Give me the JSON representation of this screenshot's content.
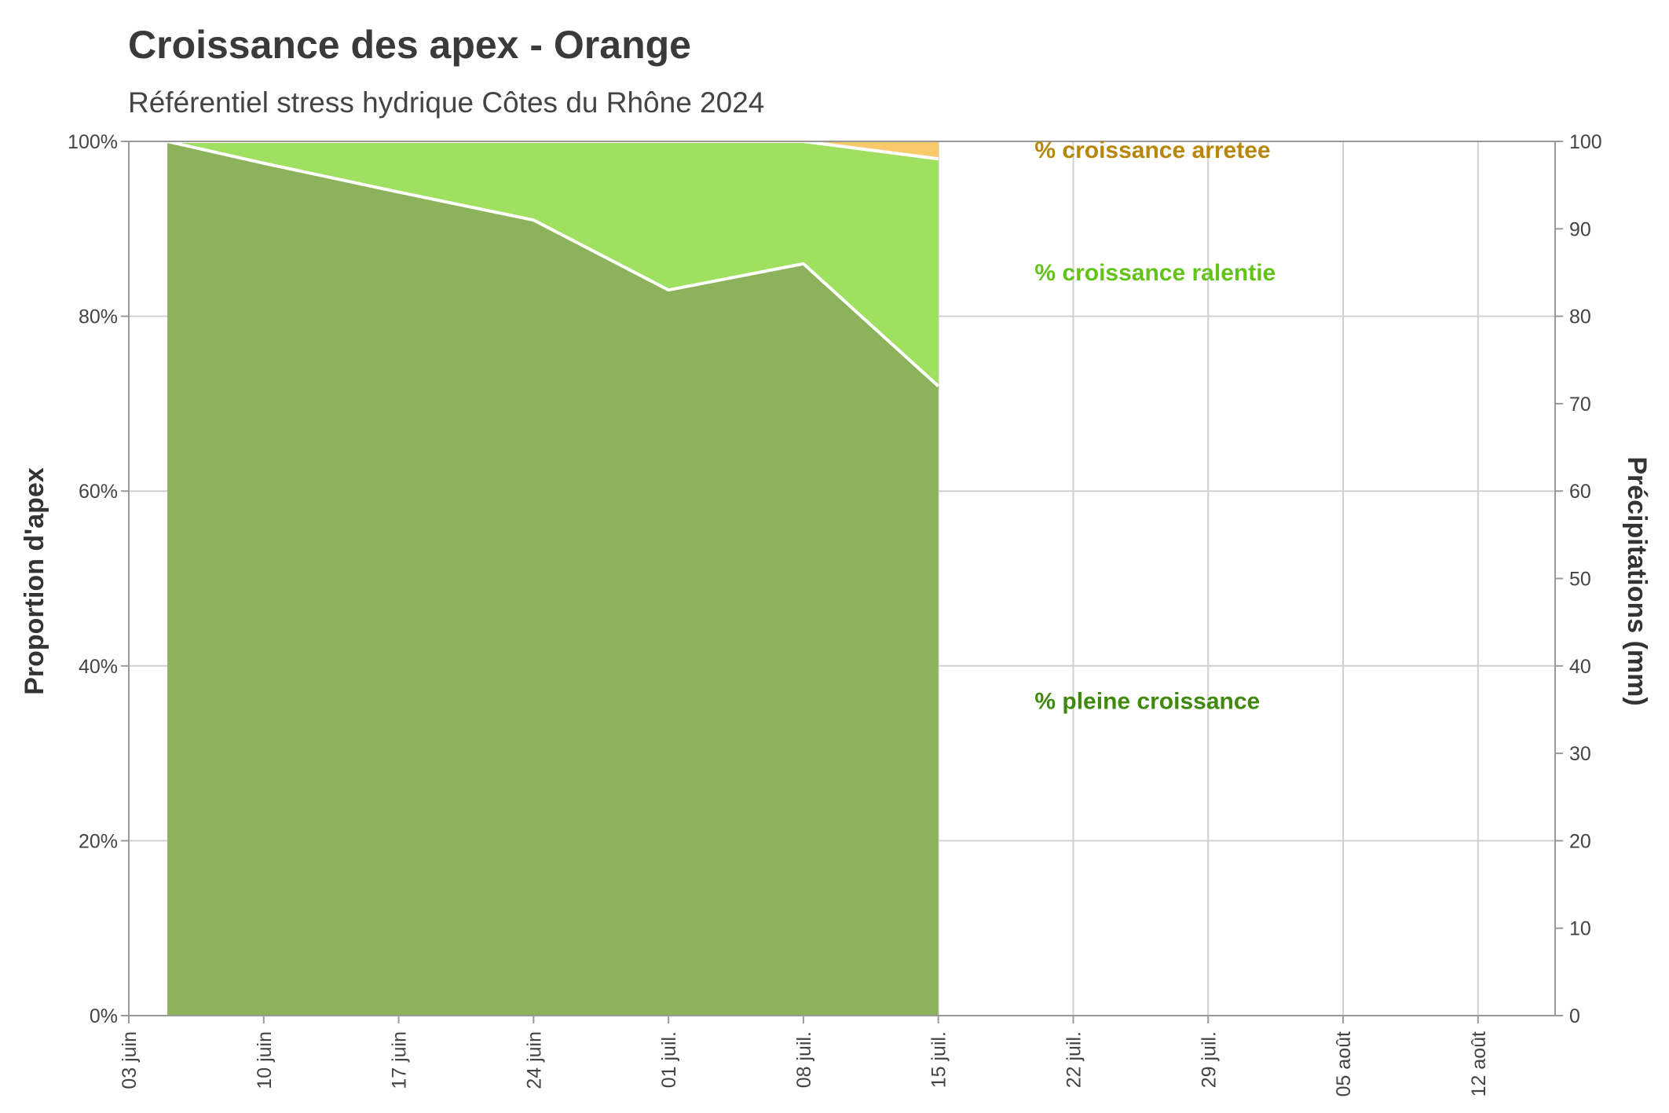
{
  "chart_data": {
    "type": "area",
    "title": "Croissance des apex - Orange",
    "subtitle": "Référentiel stress hydrique Côtes du Rhône 2024",
    "ylabel": "Proportion d'apex",
    "y2label": "Précipitations (mm)",
    "xlim": [
      "2024-06-03",
      "2024-08-16"
    ],
    "ylim": [
      0,
      100
    ],
    "y2lim": [
      0,
      100
    ],
    "x_ticks": [
      {
        "date": "2024-06-03",
        "label": "03 juin"
      },
      {
        "date": "2024-06-10",
        "label": "10 juin"
      },
      {
        "date": "2024-06-17",
        "label": "17 juin"
      },
      {
        "date": "2024-06-24",
        "label": "24 juin"
      },
      {
        "date": "2024-07-01",
        "label": "01 juil."
      },
      {
        "date": "2024-07-08",
        "label": "08 juil."
      },
      {
        "date": "2024-07-15",
        "label": "15 juil."
      },
      {
        "date": "2024-07-22",
        "label": "22 juil."
      },
      {
        "date": "2024-07-29",
        "label": "29 juil."
      },
      {
        "date": "2024-08-05",
        "label": "05 août"
      },
      {
        "date": "2024-08-12",
        "label": "12 août"
      }
    ],
    "y_ticks": [
      "0%",
      "20%",
      "40%",
      "60%",
      "80%",
      "100%"
    ],
    "y2_ticks": [
      "0",
      "10",
      "20",
      "30",
      "40",
      "50",
      "60",
      "70",
      "80",
      "90",
      "100"
    ],
    "x": [
      "2024-06-05",
      "2024-06-10",
      "2024-06-17",
      "2024-06-24",
      "2024-07-01",
      "2024-07-08",
      "2024-07-15"
    ],
    "series": [
      {
        "name": "% pleine croissance",
        "color": "#8cb35c",
        "label_color": "#3f8a0e",
        "values": [
          100,
          97.5,
          94.2,
          91,
          83,
          86,
          72
        ]
      },
      {
        "name": "%  croissance ralentie",
        "color": "#a0e060",
        "label_color": "#62c419",
        "values": [
          0,
          2.5,
          5.8,
          9,
          17,
          14,
          26
        ]
      },
      {
        "name": "% croissance arretee",
        "color": "#f9ca6a",
        "label_color": "#b8860b",
        "values": [
          0,
          0,
          0,
          0,
          0,
          0,
          2
        ]
      }
    ]
  }
}
